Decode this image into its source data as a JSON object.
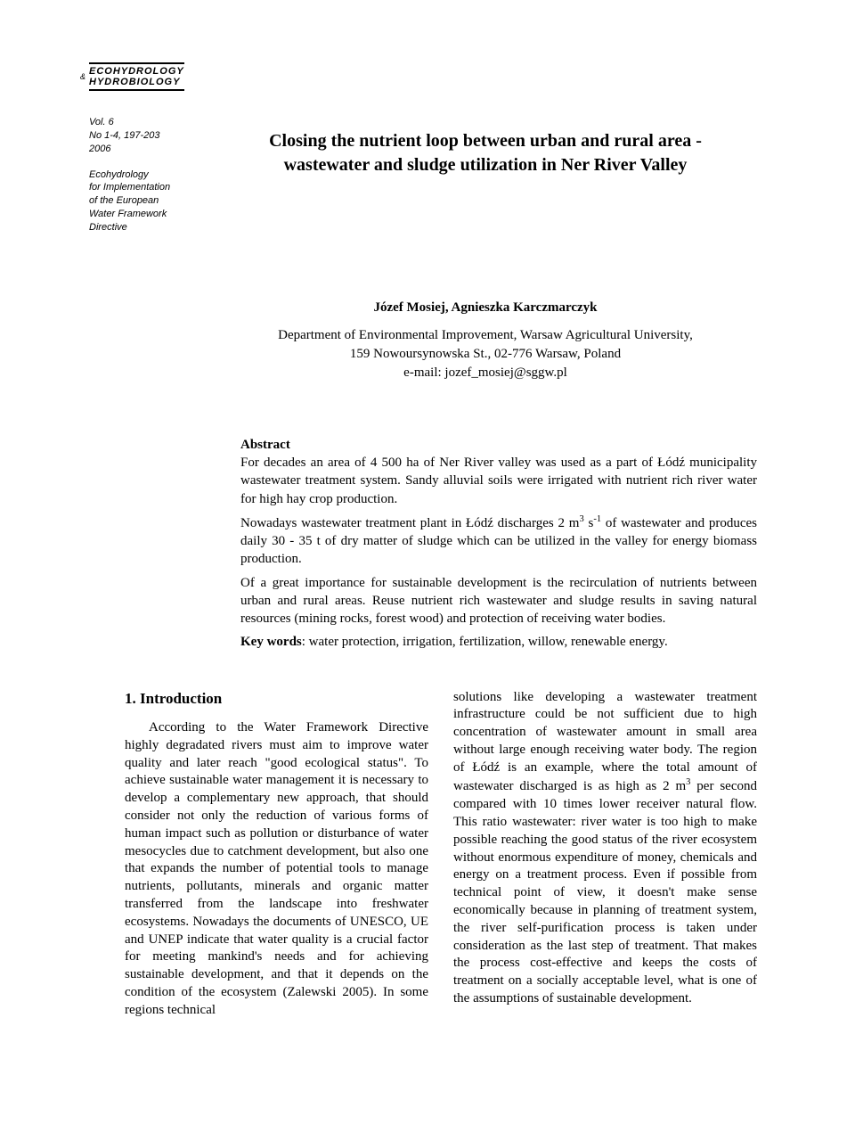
{
  "journal": {
    "line1": "ECOHYDROLOGY",
    "line2": "HYDROBIOLOGY"
  },
  "meta": {
    "volume": "Vol. 6",
    "issue": "No 1-4, 197-203",
    "year": "2006",
    "section1": "Ecohydrology",
    "section2": "for Implementation",
    "section3": "of the European",
    "section4": "Water Framework",
    "section5": "Directive"
  },
  "title": {
    "line1": "Closing the nutrient loop between urban and rural area -",
    "line2": "wastewater and sludge utilization in Ner River Valley"
  },
  "authors": "Józef Mosiej, Agnieszka Karczmarczyk",
  "affiliation": {
    "line1": "Department of Environmental Improvement, Warsaw Agricultural University,",
    "line2": "159 Nowoursynowska St., 02-776 Warsaw, Poland",
    "line3": "e-mail: jozef_mosiej@sggw.pl"
  },
  "abstract": {
    "heading": "Abstract",
    "p1": "For decades an area of 4 500 ha of Ner River valley was used as a part of Łódź municipality wastewater treatment system. Sandy alluvial soils were irrigated with nutrient rich river water for high hay crop production.",
    "p2_a": "Nowadays wastewater treatment plant in Łódź discharges 2 m",
    "p2_b": " s",
    "p2_c": " of wastewater and produces daily 30 - 35 t of dry matter of sludge which can be utilized in the valley for energy biomass production.",
    "p3": "Of a great importance for sustainable development is the recirculation of nutrients between urban and rural areas. Reuse nutrient rich wastewater and sludge results in saving natural resources (mining rocks, forest wood) and protection of receiving water bodies.",
    "keywords_label": "Key words",
    "keywords": ": water protection, irrigation, fertilization, willow, renewable energy."
  },
  "section1": {
    "heading": "1. Introduction",
    "col1": "According to the Water Framework Directive highly degradated rivers must aim to improve water quality and later reach \"good ecological status\". To achieve sustainable water management it is necessary to develop a complementary new approach, that should consider not only the reduction of various forms of human impact such as pollution or disturbance of water mesocycles due to catchment development, but also one that expands the number of potential tools to manage nutrients, pollutants, minerals and organic matter transferred from the landscape into freshwater ecosystems. Nowadays the documents of UNESCO, UE and UNEP indicate that water quality is a crucial factor for meeting mankind's needs and for achieving sustainable development, and that it depends on the condition of the ecosystem (Zalewski 2005). In some regions technical",
    "col2_a": "solutions like developing a wastewater treatment infrastructure could be not sufficient due to high concentration of wastewater amount in small area without large enough receiving water body. The region of Łódź is an example, where the total amount of wastewater discharged is as high as 2 m",
    "col2_b": " per second compared with 10 times lower receiver natural flow. This ratio wastewater: river water is too high to make possible reaching the good status of the river ecosystem without enormous expenditure of money, chemicals and energy on a treatment process. Even if possible from technical point of view, it doesn't make sense economically because in planning of treatment system, the river self-purification process is taken under consideration as the last step of treatment. That makes the process cost-effective and keeps the costs of treatment on a socially acceptable level, what is one of the assumptions of sustainable development."
  }
}
